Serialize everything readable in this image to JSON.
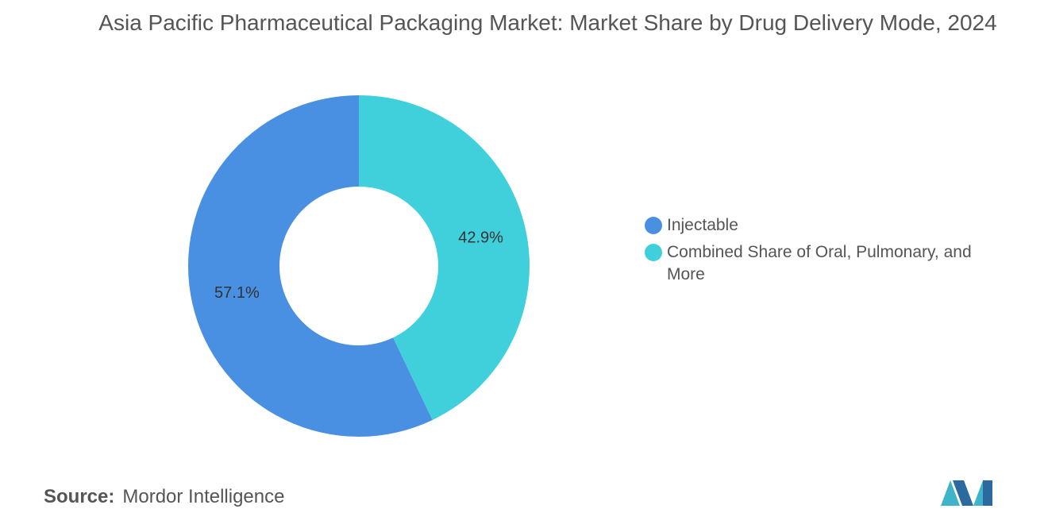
{
  "chart_data": {
    "type": "pie",
    "title": "Asia Pacific Pharmaceutical Packaging Market: Market Share by Drug Delivery Mode, 2024",
    "categories": [
      "Injectable",
      "Combined Share of Oral, Pulmonary, and More"
    ],
    "values": [
      57.1,
      42.9
    ],
    "value_labels": [
      "57.1%",
      "42.9%"
    ],
    "colors": [
      "#4a90e2",
      "#40d0db"
    ],
    "donut": true,
    "legend": "right",
    "source_label": "Source:",
    "source": "Mordor Intelligence"
  }
}
